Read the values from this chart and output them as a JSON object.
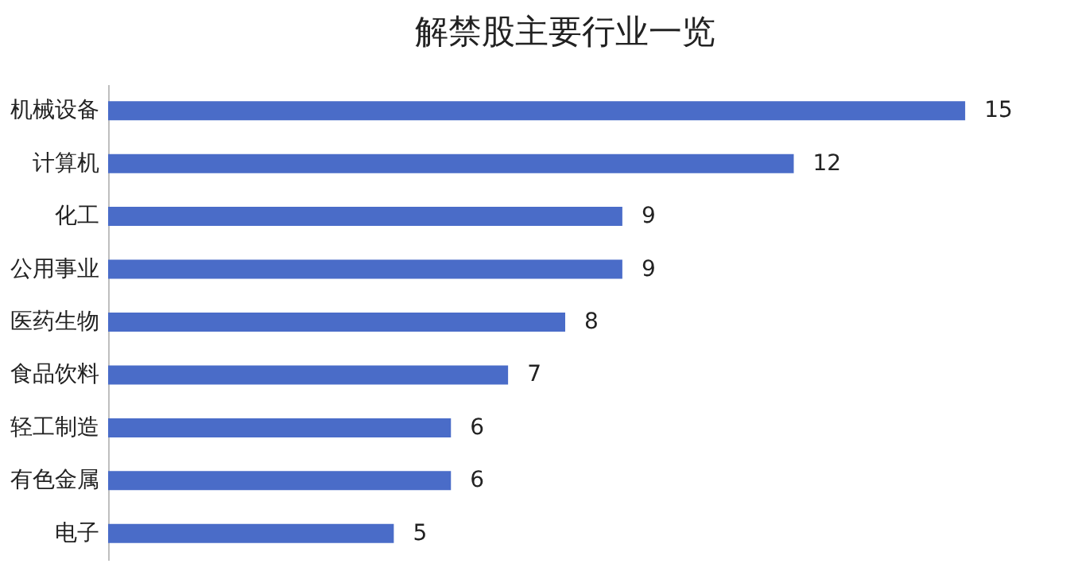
{
  "chart_data": {
    "type": "bar",
    "orientation": "horizontal",
    "title": "解禁股主要行业一览",
    "categories": [
      "机械设备",
      "计算机",
      "化工",
      "公用事业",
      "医药生物",
      "食品饮料",
      "轻工制造",
      "有色金属",
      "电子"
    ],
    "values": [
      15,
      12,
      9,
      9,
      8,
      7,
      6,
      6,
      5
    ],
    "color": "#4a6cc8",
    "data_labels": true,
    "tick_labels": "y"
  }
}
